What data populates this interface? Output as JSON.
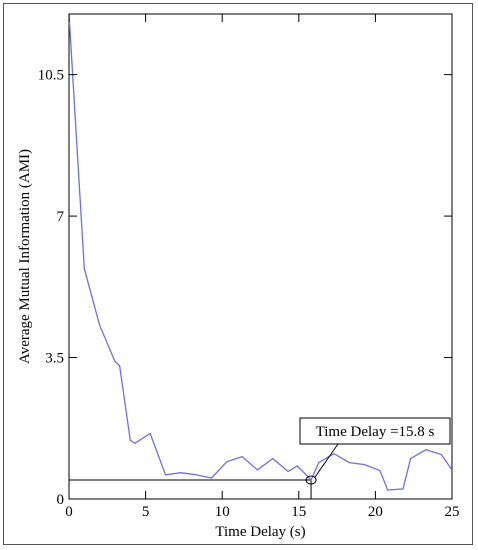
{
  "chart_data": {
    "type": "line",
    "title": "",
    "xlabel": "Time Delay (s)",
    "ylabel": "Average Mutual Information (AMI)",
    "xlim": [
      0,
      25
    ],
    "ylim": [
      0,
      12
    ],
    "xticks": [
      0,
      5,
      10,
      15,
      20,
      25
    ],
    "yticks": [
      0,
      3.5,
      7,
      10.5
    ],
    "xtick_labels": [
      "0",
      "5",
      "10",
      "15",
      "20",
      "25"
    ],
    "ytick_labels": [
      "0",
      "3.5",
      "7",
      "10.5"
    ],
    "grid": false,
    "series": [
      {
        "color": "#6f6fe0",
        "x": [
          0,
          1,
          2,
          3,
          3.3,
          4,
          4.3,
          5.3,
          6.3,
          7.3,
          8.3,
          9.3,
          10.3,
          11.3,
          12.3,
          13.3,
          14.3,
          14.9,
          15.8,
          16.3,
          17.3,
          18.3,
          19.3,
          20.3,
          20.8,
          21.8,
          22.3,
          23.3,
          24.3,
          25
        ],
        "y": [
          12.0,
          5.7,
          4.3,
          3.4,
          3.3,
          1.45,
          1.38,
          1.62,
          0.6,
          0.65,
          0.6,
          0.52,
          0.92,
          1.05,
          0.72,
          1.0,
          0.68,
          0.82,
          0.47,
          0.9,
          1.12,
          0.9,
          0.85,
          0.7,
          0.22,
          0.25,
          1.0,
          1.22,
          1.1,
          0.72
        ]
      }
    ],
    "reference_lines": [
      {
        "orientation": "horizontal",
        "value": 0.47,
        "x_from": 0,
        "x_to": 15.8,
        "color": "#000000"
      },
      {
        "orientation": "vertical",
        "value": 15.8,
        "y_from": 0,
        "y_to": 0.47,
        "color": "#000000"
      }
    ],
    "annotations": [
      {
        "text": "Time Delay =15.8 s",
        "x": 15.8,
        "y": 0.47
      }
    ]
  }
}
